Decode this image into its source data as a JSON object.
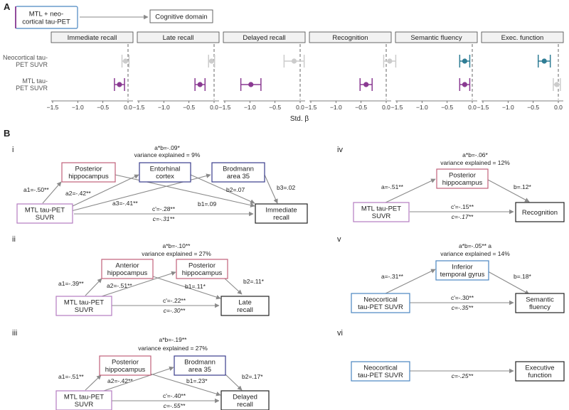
{
  "panel_a": {
    "letter": "A",
    "legend_box": "MTL + neo-\ncortical tau-PET",
    "legend_target": "Cognitive domain",
    "x_axis_title": "Std. β"
  },
  "panel_b": {
    "letter": "B",
    "diagrams": [
      {
        "numeral": "i",
        "header_line1": "a*b=-.09*",
        "header_line2": "variance explained = 9%",
        "predictor": "MTL tau-PET\nSUVR",
        "mediators": [
          "Posterior\nhippocampus",
          "Entorhinal\ncortex",
          "Brodmann\narea 35"
        ],
        "outcome": "Immediate\nrecall",
        "paths": [
          "a1=-.50**",
          "a2=-.42**",
          "a3=-.41**",
          "b1=.09",
          "b2=.07",
          "b3=.02",
          "c'=-.28**",
          "c=-.31**"
        ]
      },
      {
        "numeral": "ii",
        "header_line1": "a*b=-.10**",
        "header_line2": "variance explained = 27%",
        "predictor": "MTL tau-PET\nSUVR",
        "mediators": [
          "Anterior\nhippocampus",
          "Posterior\nhippocampus"
        ],
        "outcome": "Late\nrecall",
        "paths": [
          "a1=-.39**",
          "a2=-.51**",
          "b1=.11*",
          "b2=.11*",
          "c'=-.22**",
          "c=-.30**"
        ]
      },
      {
        "numeral": "iii",
        "header_line1": "a*b=-.19**",
        "header_line2": "variance explained = 27%",
        "predictor": "MTL tau-PET\nSUVR",
        "mediators": [
          "Posterior\nhippocampus",
          "Brodmann\narea 35"
        ],
        "outcome": "Delayed\nrecall",
        "paths": [
          "a1=-.51**",
          "a2=-.42**",
          "b1=.23*",
          "b2=.17*",
          "c'=-.40**",
          "c=-.55**"
        ]
      },
      {
        "numeral": "iv",
        "header_line1": "a*b=-.06*",
        "header_line2": "variance explained = 12%",
        "predictor": "MTL tau-PET\nSUVR",
        "mediators": [
          "Posterior\nhippocampus"
        ],
        "outcome": "Recognition",
        "paths": [
          "a=-.51**",
          "b=.12*",
          "c'=-.15**",
          "c=-.17**"
        ]
      },
      {
        "numeral": "v",
        "header_line1": "a*b=-.05** a",
        "header_line2": "variance explained = 14%",
        "predictor": "Neocortical\ntau-PET SUVR",
        "mediators": [
          "Inferior\ntemporal gyrus"
        ],
        "outcome": "Semantic\nfluency",
        "paths": [
          "a=-.31**",
          "b=.18*",
          "c'=-.30**",
          "c=-.35**"
        ]
      },
      {
        "numeral": "vi",
        "header_line1": "",
        "header_line2": "",
        "predictor": "Neocortical\ntau-PET SUVR",
        "mediators": [],
        "outcome": "Executive\nfunction",
        "paths": [
          "c=-.25**"
        ]
      }
    ]
  },
  "colors": {
    "mtl": "#8a3a92",
    "mtl_box": "#b57cc0",
    "neo": "#2f7d95",
    "neo_box": "#4a86c0",
    "hippo_box": "#c0607a",
    "ba35_box": "#3a3d8c",
    "faded": "#cccccc",
    "arrow": "#8a8a8a",
    "strip_fill": "#f2f2f2"
  },
  "chart_data": {
    "type": "forest",
    "x_label": "Std. β",
    "x_range": [
      -1.5,
      0.0
    ],
    "x_ticks": [
      -1.5,
      -1.0,
      -0.5,
      0.0
    ],
    "x_tick_labels": [
      "−1.5",
      "−1.0",
      "−0.5",
      "0.0"
    ],
    "row_labels": [
      "Neocortical tau-\nPET SUVR",
      "MTL tau-\nPET SUVR"
    ],
    "panels": [
      {
        "label": "Immediate recall",
        "neo": {
          "est": -0.05,
          "lo": -0.12,
          "hi": 0.02,
          "sig": false
        },
        "mtl": {
          "est": -0.17,
          "lo": -0.27,
          "hi": -0.07,
          "sig": true
        }
      },
      {
        "label": "Late recall",
        "neo": {
          "est": -0.05,
          "lo": -0.11,
          "hi": 0.01,
          "sig": false
        },
        "mtl": {
          "est": -0.28,
          "lo": -0.38,
          "hi": -0.18,
          "sig": true
        }
      },
      {
        "label": "Delayed recall",
        "neo": {
          "est": -0.12,
          "lo": -0.32,
          "hi": 0.08,
          "sig": false
        },
        "mtl": {
          "est": -0.98,
          "lo": -1.18,
          "hi": -0.78,
          "sig": true
        }
      },
      {
        "label": "Recognition",
        "neo": {
          "est": 0.07,
          "lo": -0.05,
          "hi": 0.19,
          "sig": false
        },
        "mtl": {
          "est": -0.4,
          "lo": -0.52,
          "hi": -0.28,
          "sig": true
        }
      },
      {
        "label": "Semantic fluency",
        "neo": {
          "est": -0.15,
          "lo": -0.25,
          "hi": -0.05,
          "sig": true
        },
        "mtl": {
          "est": -0.15,
          "lo": -0.25,
          "hi": -0.05,
          "sig": true
        }
      },
      {
        "label": "Exec. function",
        "neo": {
          "est": -0.28,
          "lo": -0.4,
          "hi": -0.16,
          "sig": true
        },
        "mtl": {
          "est": -0.03,
          "lo": -0.1,
          "hi": 0.04,
          "sig": false
        }
      }
    ]
  }
}
